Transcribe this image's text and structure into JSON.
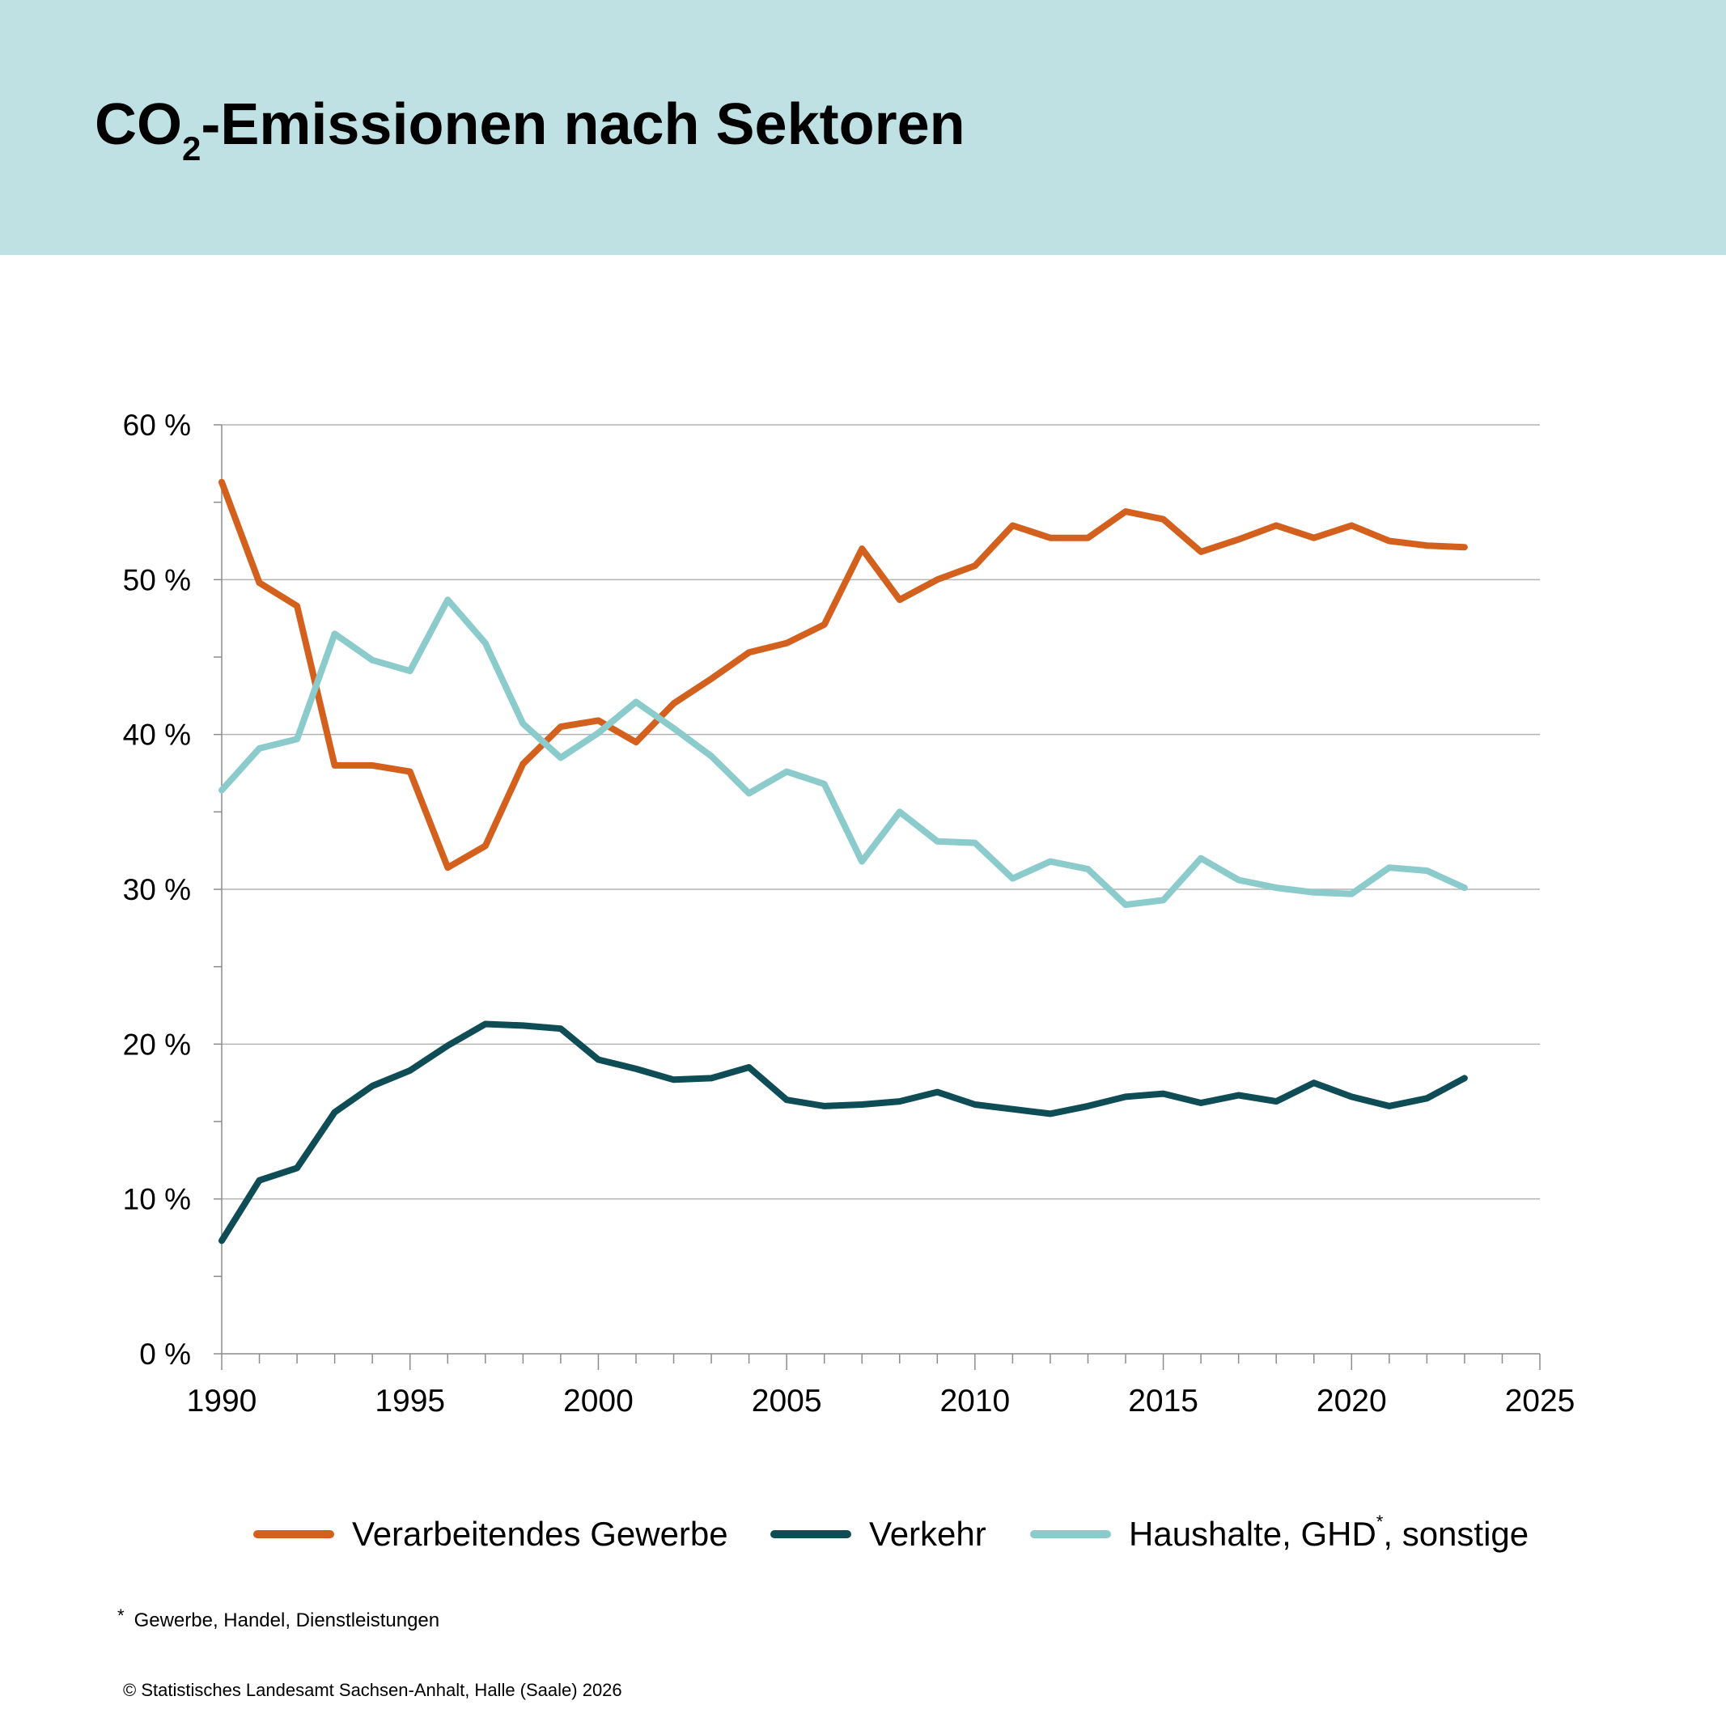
{
  "header": {
    "title_main": "CO",
    "title_sub": "2",
    "title_rest": "-Emissionen nach Sektoren",
    "background": "#bfe1e3"
  },
  "chart_data": {
    "type": "line",
    "x": [
      1990,
      1991,
      1992,
      1993,
      1994,
      1995,
      1996,
      1997,
      1998,
      1999,
      2000,
      2001,
      2002,
      2003,
      2004,
      2005,
      2006,
      2007,
      2008,
      2009,
      2010,
      2011,
      2012,
      2013,
      2014,
      2015,
      2016,
      2017,
      2018,
      2019,
      2020,
      2021,
      2022,
      2023
    ],
    "series": [
      {
        "name": "Verarbeitendes Gewerbe",
        "color": "#d4601e",
        "values": [
          56.3,
          49.8,
          48.3,
          38.0,
          38.0,
          37.6,
          31.4,
          32.8,
          38.1,
          40.5,
          40.9,
          39.5,
          42.0,
          43.6,
          45.3,
          45.9,
          47.1,
          52.0,
          48.7,
          50.0,
          50.9,
          53.5,
          52.7,
          52.7,
          54.4,
          53.9,
          51.8,
          52.6,
          53.5,
          52.7,
          53.5,
          52.5,
          52.2,
          52.1
        ]
      },
      {
        "name": "Verkehr",
        "color": "#0e4d55",
        "values": [
          7.3,
          11.2,
          12.0,
          15.6,
          17.3,
          18.3,
          19.9,
          21.3,
          21.2,
          21.0,
          19.0,
          18.4,
          17.7,
          17.8,
          18.5,
          16.4,
          16.0,
          16.1,
          16.3,
          16.9,
          16.1,
          15.8,
          15.5,
          16.0,
          16.6,
          16.8,
          16.2,
          16.7,
          16.3,
          17.5,
          16.6,
          16.0,
          16.5,
          17.8
        ]
      },
      {
        "name": "Haushalte, GHD",
        "name_mark": "*",
        "name_suffix": ", sonstige",
        "color": "#8ccbcc",
        "values": [
          36.4,
          39.1,
          39.7,
          46.5,
          44.8,
          44.1,
          48.7,
          45.9,
          40.7,
          38.5,
          40.1,
          42.1,
          40.4,
          38.6,
          36.2,
          37.6,
          36.8,
          31.8,
          35.0,
          33.1,
          33.0,
          30.7,
          31.8,
          31.3,
          29.0,
          29.3,
          32.0,
          30.6,
          30.1,
          29.8,
          29.7,
          31.4,
          31.2,
          30.1
        ]
      }
    ],
    "y_ticks": [
      "0 %",
      "10 %",
      "20 %",
      "30 %",
      "40 %",
      "50 %",
      "60 %"
    ],
    "y_tick_values": [
      0,
      10,
      20,
      30,
      40,
      50,
      60
    ],
    "x_ticks": [
      "1990",
      "1995",
      "2000",
      "2005",
      "2010",
      "2015",
      "2020",
      "2025"
    ],
    "x_tick_values": [
      1990,
      1995,
      2000,
      2005,
      2010,
      2015,
      2020,
      2025
    ],
    "xlim": [
      1990,
      2025
    ],
    "ylim": [
      0,
      60
    ],
    "grid": true,
    "legend_position": "bottom"
  },
  "footnote": {
    "mark": "*",
    "text": "Gewerbe, Handel, Dienstleistungen"
  },
  "source": "© Statistisches Landesamt Sachsen-Anhalt, Halle (Saale) 2026"
}
